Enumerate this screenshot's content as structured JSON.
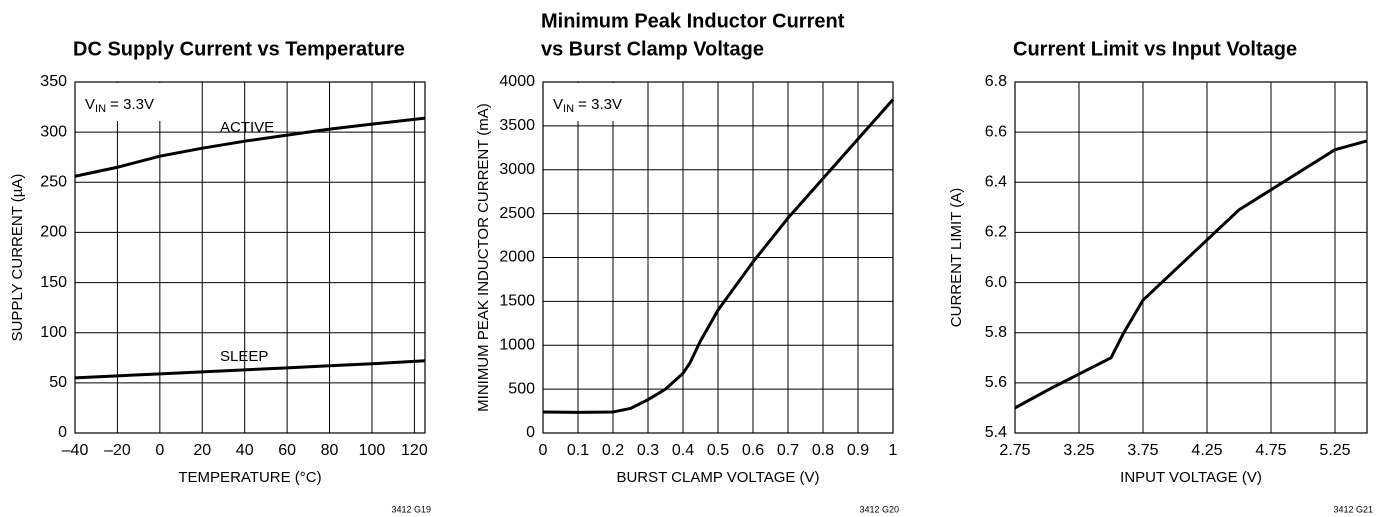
{
  "chart_data": [
    {
      "type": "line",
      "title": [
        "DC Supply Current vs Temperature"
      ],
      "xlabel": "TEMPERATURE (°C)",
      "ylabel": "SUPPLY CURRENT (µA)",
      "x": [
        -40,
        -20,
        0,
        20,
        40,
        60,
        80,
        100,
        125
      ],
      "series": [
        {
          "name": "ACTIVE",
          "color": "#000000",
          "values": [
            256,
            265,
            276,
            284,
            291,
            297,
            303,
            308,
            314
          ]
        },
        {
          "name": "SLEEP",
          "color": "#000000",
          "values": [
            55,
            57,
            59,
            61,
            63,
            65,
            67,
            69,
            72
          ]
        }
      ],
      "condition": {
        "symbol": "V",
        "subscript": "IN",
        "text": " = 3.3V"
      },
      "xlim": [
        -40,
        125
      ],
      "xticks": [
        {
          "value": -40,
          "label": "–40"
        },
        {
          "value": -20,
          "label": "–20"
        },
        0,
        20,
        40,
        60,
        80,
        100,
        120
      ],
      "ylim": [
        0,
        350
      ],
      "yticks": [
        0,
        50,
        100,
        150,
        200,
        250,
        300,
        350
      ],
      "grid": true,
      "figure_id": "3412 G19"
    },
    {
      "type": "line",
      "title": [
        "Minimum Peak Inductor Current",
        "vs Burst Clamp Voltage"
      ],
      "xlabel": "BURST CLAMP VOLTAGE (V)",
      "ylabel": "MINIMUM PEAK INDUCTOR CURRENT (mA)",
      "x": [
        0,
        0.1,
        0.2,
        0.25,
        0.3,
        0.35,
        0.4,
        0.42,
        0.45,
        0.5,
        0.6,
        0.7,
        0.8,
        0.9,
        1.0
      ],
      "series": [
        {
          "color": "#000000",
          "values": [
            240,
            235,
            240,
            280,
            380,
            500,
            680,
            800,
            1050,
            1400,
            1950,
            2450,
            2900,
            3350,
            3800
          ]
        }
      ],
      "condition": {
        "symbol": "V",
        "subscript": "IN",
        "text": " = 3.3V"
      },
      "xlim": [
        0,
        1
      ],
      "xticks": [
        0,
        0.1,
        0.2,
        0.3,
        0.4,
        0.5,
        0.6,
        0.7,
        0.8,
        0.9,
        1
      ],
      "ylim": [
        0,
        4000
      ],
      "yticks": [
        0,
        500,
        1000,
        1500,
        2000,
        2500,
        3000,
        3500,
        4000
      ],
      "grid": true,
      "figure_id": "3412 G20"
    },
    {
      "type": "line",
      "title": [
        "Current Limit vs Input Voltage"
      ],
      "xlabel": "INPUT VOLTAGE (V)",
      "ylabel": "CURRENT LIMIT (A)",
      "x": [
        2.75,
        3.0,
        3.25,
        3.5,
        3.6,
        3.75,
        4.0,
        4.25,
        4.5,
        4.75,
        5.0,
        5.25,
        5.5
      ],
      "series": [
        {
          "color": "#000000",
          "values": [
            5.5,
            5.57,
            5.635,
            5.7,
            5.8,
            5.93,
            6.05,
            6.17,
            6.29,
            6.37,
            6.45,
            6.53,
            6.565
          ]
        }
      ],
      "xlim": [
        2.75,
        5.5
      ],
      "xticks": [
        2.75,
        3.25,
        3.75,
        4.25,
        4.75,
        5.25
      ],
      "ylim": [
        5.4,
        6.8
      ],
      "yticks": [
        5.4,
        5.6,
        5.8,
        {
          "value": 6,
          "label": "6.0"
        },
        6.2,
        6.4,
        6.6,
        6.8
      ],
      "grid": true,
      "figure_id": "3412 G21"
    }
  ]
}
